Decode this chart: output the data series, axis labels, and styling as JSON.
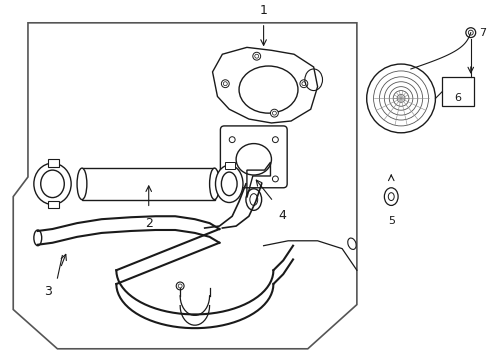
{
  "bg_color": "#ffffff",
  "line_color": "#1a1a1a",
  "gray": "#666666",
  "fig_width": 4.89,
  "fig_height": 3.6,
  "dpi": 100
}
